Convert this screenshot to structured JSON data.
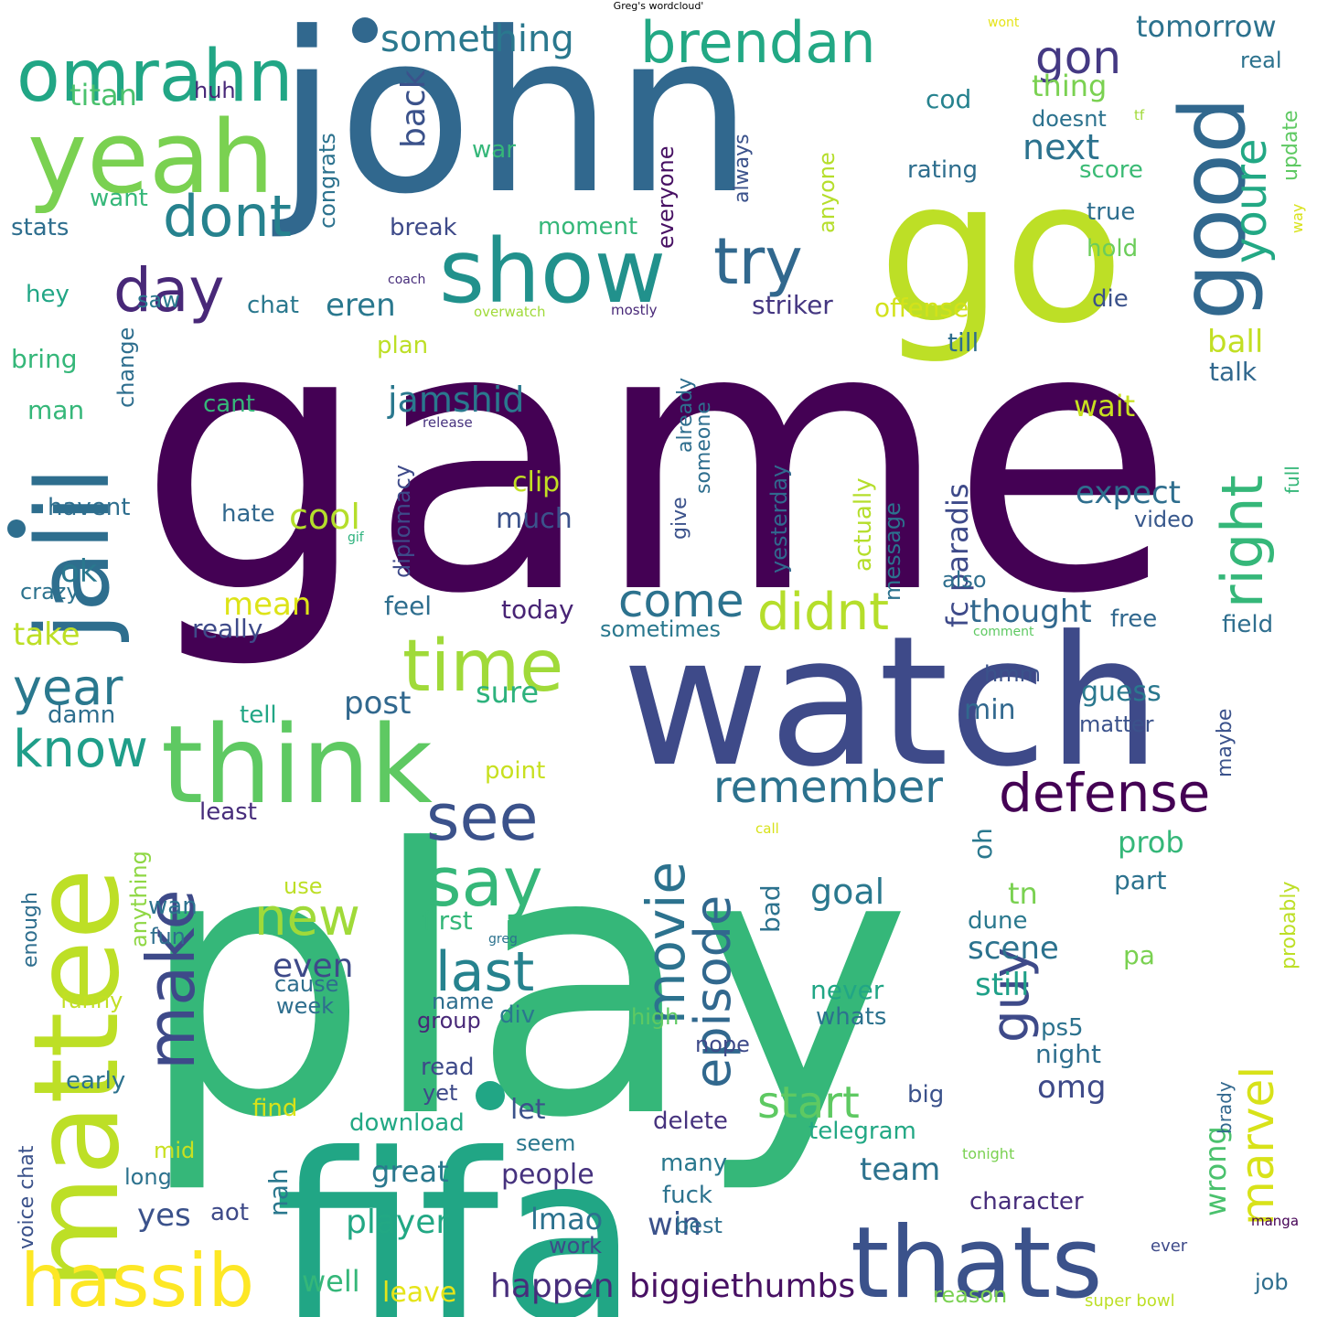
{
  "title": "Greg's wordcloud'",
  "words": [
    {
      "text": "game",
      "color": "#440154"
    },
    {
      "text": "play",
      "color": "#35b779"
    },
    {
      "text": "john",
      "color": "#31688e"
    },
    {
      "text": "go",
      "color": "#bddf26"
    },
    {
      "text": "watch",
      "color": "#3e4a89"
    },
    {
      "text": "fifa",
      "color": "#21a685"
    },
    {
      "text": "mattee",
      "color": "#bddf26"
    },
    {
      "text": "think",
      "color": "#5ec962"
    },
    {
      "text": "yeah",
      "color": "#7ad151"
    },
    {
      "text": "show",
      "color": "#21918c"
    },
    {
      "text": "jalil",
      "color": "#2e6e8e"
    },
    {
      "text": "thats",
      "color": "#3b528b"
    },
    {
      "text": "good",
      "color": "#31688e"
    },
    {
      "text": "hassib",
      "color": "#fde725"
    },
    {
      "text": "omrahn",
      "color": "#21a685"
    },
    {
      "text": "time",
      "color": "#a0da39"
    },
    {
      "text": "say",
      "color": "#35b779"
    },
    {
      "text": "see",
      "color": "#3b528b"
    },
    {
      "text": "make",
      "color": "#3e4a89"
    },
    {
      "text": "brendan",
      "color": "#22a884"
    },
    {
      "text": "right",
      "color": "#35b779"
    },
    {
      "text": "try",
      "color": "#31688e"
    },
    {
      "text": "day",
      "color": "#482878"
    },
    {
      "text": "dont",
      "color": "#26828e"
    },
    {
      "text": "movie",
      "color": "#2c728e"
    },
    {
      "text": "defense",
      "color": "#440154"
    },
    {
      "text": "last",
      "color": "#26828e"
    },
    {
      "text": "new",
      "color": "#a0da39"
    },
    {
      "text": "guy",
      "color": "#3e4a89"
    },
    {
      "text": "didnt",
      "color": "#b5de2b"
    },
    {
      "text": "know",
      "color": "#1f9e89"
    },
    {
      "text": "year",
      "color": "#2a788e"
    },
    {
      "text": "episode",
      "color": "#31688e"
    },
    {
      "text": "marvel",
      "color": "#d8e219"
    },
    {
      "text": "youre",
      "color": "#22a884"
    },
    {
      "text": "remember",
      "color": "#2c728e"
    },
    {
      "text": "come",
      "color": "#2c728e"
    },
    {
      "text": "gon",
      "color": "#443983"
    },
    {
      "text": "start",
      "color": "#5ec962"
    },
    {
      "text": "something",
      "color": "#2a788e"
    },
    {
      "text": "biggiethumbs",
      "color": "#471063"
    },
    {
      "text": "happen",
      "color": "#472d7b"
    },
    {
      "text": "jamshid",
      "color": "#2a788e"
    },
    {
      "text": "next",
      "color": "#2c728e"
    },
    {
      "text": "back",
      "color": "#3b528b"
    },
    {
      "text": "player",
      "color": "#22a884"
    },
    {
      "text": "even",
      "color": "#3e4a89"
    },
    {
      "text": "cool",
      "color": "#b5de2b"
    },
    {
      "text": "goal",
      "color": "#2a788e"
    },
    {
      "text": "tomorrow",
      "color": "#2c728e"
    },
    {
      "text": "post",
      "color": "#31688e"
    },
    {
      "text": "expect",
      "color": "#2e6e8e"
    },
    {
      "text": "scene",
      "color": "#2c728e"
    },
    {
      "text": "team",
      "color": "#2c728e"
    },
    {
      "text": "still",
      "color": "#1fa088"
    },
    {
      "text": "win",
      "color": "#3b528b"
    },
    {
      "text": "omg",
      "color": "#3e4a89"
    },
    {
      "text": "wrong",
      "color": "#4ac16d"
    },
    {
      "text": "mean",
      "color": "#dde318"
    },
    {
      "text": "thought",
      "color": "#31688e"
    },
    {
      "text": "yes",
      "color": "#3b528b"
    },
    {
      "text": "eren",
      "color": "#2a788e"
    },
    {
      "text": "ball",
      "color": "#c2df23"
    },
    {
      "text": "fc paradis",
      "color": "#3e4a89"
    },
    {
      "text": "titan",
      "color": "#4ac16d"
    },
    {
      "text": "thing",
      "color": "#7ad151"
    },
    {
      "text": "wait",
      "color": "#c8e020"
    },
    {
      "text": "great",
      "color": "#2a788e"
    },
    {
      "text": "prob",
      "color": "#35b779"
    },
    {
      "text": "lmao",
      "color": "#2c728e"
    },
    {
      "text": "take",
      "color": "#bddf26"
    },
    {
      "text": "striker",
      "color": "#453781"
    },
    {
      "text": "offense",
      "color": "#d2e21b"
    },
    {
      "text": "leave",
      "color": "#e5e419"
    },
    {
      "text": "well",
      "color": "#35b779"
    },
    {
      "text": "people",
      "color": "#46327e"
    },
    {
      "text": "sure",
      "color": "#2db27d"
    },
    {
      "text": "guess",
      "color": "#2a788e"
    },
    {
      "text": "talk",
      "color": "#31688e"
    },
    {
      "text": "min",
      "color": "#31688e"
    },
    {
      "text": "today",
      "color": "#482475"
    },
    {
      "text": "feel",
      "color": "#2e6e8e"
    },
    {
      "text": "ok",
      "color": "#2a788e"
    },
    {
      "text": "much",
      "color": "#3b528b"
    },
    {
      "text": "clip",
      "color": "#c2df23"
    },
    {
      "text": "tn",
      "color": "#7ad151"
    },
    {
      "text": "congrats",
      "color": "#2c728e"
    },
    {
      "text": "doesnt",
      "color": "#2c728e"
    },
    {
      "text": "score",
      "color": "#3bbb75"
    },
    {
      "text": "rating",
      "color": "#2e6e8e"
    },
    {
      "text": "cod",
      "color": "#26828e"
    },
    {
      "text": "update",
      "color": "#5ec962"
    },
    {
      "text": "real",
      "color": "#2c728e"
    },
    {
      "text": "true",
      "color": "#2e6e8e"
    },
    {
      "text": "hold",
      "color": "#6ccd5a"
    },
    {
      "text": "die",
      "color": "#3b528b"
    },
    {
      "text": "till",
      "color": "#2e6e8e"
    },
    {
      "text": "full",
      "color": "#35b779"
    },
    {
      "text": "video",
      "color": "#38588c"
    },
    {
      "text": "also",
      "color": "#2e6e8e"
    },
    {
      "text": "free",
      "color": "#31688e"
    },
    {
      "text": "field",
      "color": "#2e6e8e"
    },
    {
      "text": "matter",
      "color": "#3b528b"
    },
    {
      "text": "maybe",
      "color": "#3b528b"
    },
    {
      "text": "hmm",
      "color": "#3b528b"
    },
    {
      "text": "oh",
      "color": "#2a788e"
    },
    {
      "text": "part",
      "color": "#2c728e"
    },
    {
      "text": "probably",
      "color": "#bddf26"
    },
    {
      "text": "pa",
      "color": "#7ad151"
    },
    {
      "text": "dune",
      "color": "#2a788e"
    },
    {
      "text": "never",
      "color": "#21a685"
    },
    {
      "text": "whats",
      "color": "#2c728e"
    },
    {
      "text": "ps5",
      "color": "#2c728e"
    },
    {
      "text": "night",
      "color": "#2e6e8e"
    },
    {
      "text": "brady",
      "color": "#31688e"
    },
    {
      "text": "big",
      "color": "#3b528b"
    },
    {
      "text": "delete",
      "color": "#46327e"
    },
    {
      "text": "telegram",
      "color": "#22a884"
    },
    {
      "text": "many",
      "color": "#2a788e"
    },
    {
      "text": "fuck",
      "color": "#2c728e"
    },
    {
      "text": "best",
      "color": "#2e6e8e"
    },
    {
      "text": "character",
      "color": "#472d7b"
    },
    {
      "text": "job",
      "color": "#2e6e8e"
    },
    {
      "text": "reason",
      "color": "#7ad151"
    },
    {
      "text": "super bowl",
      "color": "#bddf26"
    },
    {
      "text": "ever",
      "color": "#3e4a89"
    },
    {
      "text": "manga",
      "color": "#440154"
    },
    {
      "text": "tonight",
      "color": "#7ad151"
    },
    {
      "text": "comment",
      "color": "#5ec962"
    },
    {
      "text": "wont",
      "color": "#e5e419"
    },
    {
      "text": "tf",
      "color": "#a0da39"
    },
    {
      "text": "way",
      "color": "#d8e219"
    },
    {
      "text": "mostly",
      "color": "#482878"
    },
    {
      "text": "overwatch",
      "color": "#a0da39"
    },
    {
      "text": "coach",
      "color": "#472d7b"
    },
    {
      "text": "release",
      "color": "#46327e"
    },
    {
      "text": "gif",
      "color": "#2db27d"
    },
    {
      "text": "call",
      "color": "#d8e219"
    },
    {
      "text": "greg",
      "color": "#2c728e"
    },
    {
      "text": "stats",
      "color": "#2e6e8e"
    },
    {
      "text": "want",
      "color": "#35b779"
    },
    {
      "text": "huh",
      "color": "#482878"
    },
    {
      "text": "war",
      "color": "#35b779"
    },
    {
      "text": "everyone",
      "color": "#471063"
    },
    {
      "text": "always",
      "color": "#3b528b"
    },
    {
      "text": "anyone",
      "color": "#b5de2b"
    },
    {
      "text": "moment",
      "color": "#35b779"
    },
    {
      "text": "break",
      "color": "#3e4a89"
    },
    {
      "text": "saw",
      "color": "#2a788e"
    },
    {
      "text": "chat",
      "color": "#2a788e"
    },
    {
      "text": "hey",
      "color": "#21a685"
    },
    {
      "text": "bring",
      "color": "#35b779"
    },
    {
      "text": "change",
      "color": "#2e6e8e"
    },
    {
      "text": "man",
      "color": "#35b779"
    },
    {
      "text": "cant",
      "color": "#35b779"
    },
    {
      "text": "plan",
      "color": "#bddf26"
    },
    {
      "text": "havent",
      "color": "#2e6e8e"
    },
    {
      "text": "hate",
      "color": "#31688e"
    },
    {
      "text": "crazy",
      "color": "#2c728e"
    },
    {
      "text": "diplomacy",
      "color": "#3e4a89"
    },
    {
      "text": "give",
      "color": "#3b528b"
    },
    {
      "text": "already",
      "color": "#2e6e8e"
    },
    {
      "text": "someone",
      "color": "#2e6e8e"
    },
    {
      "text": "yesterday",
      "color": "#31688e"
    },
    {
      "text": "actually",
      "color": "#b5de2b"
    },
    {
      "text": "message",
      "color": "#2c728e"
    },
    {
      "text": "really",
      "color": "#3e4a89"
    },
    {
      "text": "sometimes",
      "color": "#2a788e"
    },
    {
      "text": "damn",
      "color": "#2e6e8e"
    },
    {
      "text": "tell",
      "color": "#21a685"
    },
    {
      "text": "point",
      "color": "#c8e020"
    },
    {
      "text": "least",
      "color": "#472d7b"
    },
    {
      "text": "anything",
      "color": "#8fd744"
    },
    {
      "text": "enough",
      "color": "#2e6e8e"
    },
    {
      "text": "use",
      "color": "#bddf26"
    },
    {
      "text": "wan",
      "color": "#2c728e"
    },
    {
      "text": "fun",
      "color": "#2e6e8e"
    },
    {
      "text": "first",
      "color": "#35b779"
    },
    {
      "text": "bad",
      "color": "#2c728e"
    },
    {
      "text": "cause",
      "color": "#2e6e8e"
    },
    {
      "text": "week",
      "color": "#2e6e8e"
    },
    {
      "text": "name",
      "color": "#2e6e8e"
    },
    {
      "text": "group",
      "color": "#482878"
    },
    {
      "text": "div",
      "color": "#2a788e"
    },
    {
      "text": "funny",
      "color": "#c2df23"
    },
    {
      "text": "high",
      "color": "#5ec962"
    },
    {
      "text": "nope",
      "color": "#3e4a89"
    },
    {
      "text": "early",
      "color": "#2c728e"
    },
    {
      "text": "read",
      "color": "#3e4a89"
    },
    {
      "text": "yet",
      "color": "#3e4a89"
    },
    {
      "text": "voice chat",
      "color": "#3b528b"
    },
    {
      "text": "find",
      "color": "#d8e219"
    },
    {
      "text": "download",
      "color": "#22a884"
    },
    {
      "text": "let",
      "color": "#3b528b"
    },
    {
      "text": "seem",
      "color": "#2a788e"
    },
    {
      "text": "mid",
      "color": "#c8e020"
    },
    {
      "text": "long",
      "color": "#2c728e"
    },
    {
      "text": "nah",
      "color": "#2a788e"
    },
    {
      "text": "aot",
      "color": "#3e4a89"
    },
    {
      "text": "work",
      "color": "#3e4a89"
    }
  ]
}
